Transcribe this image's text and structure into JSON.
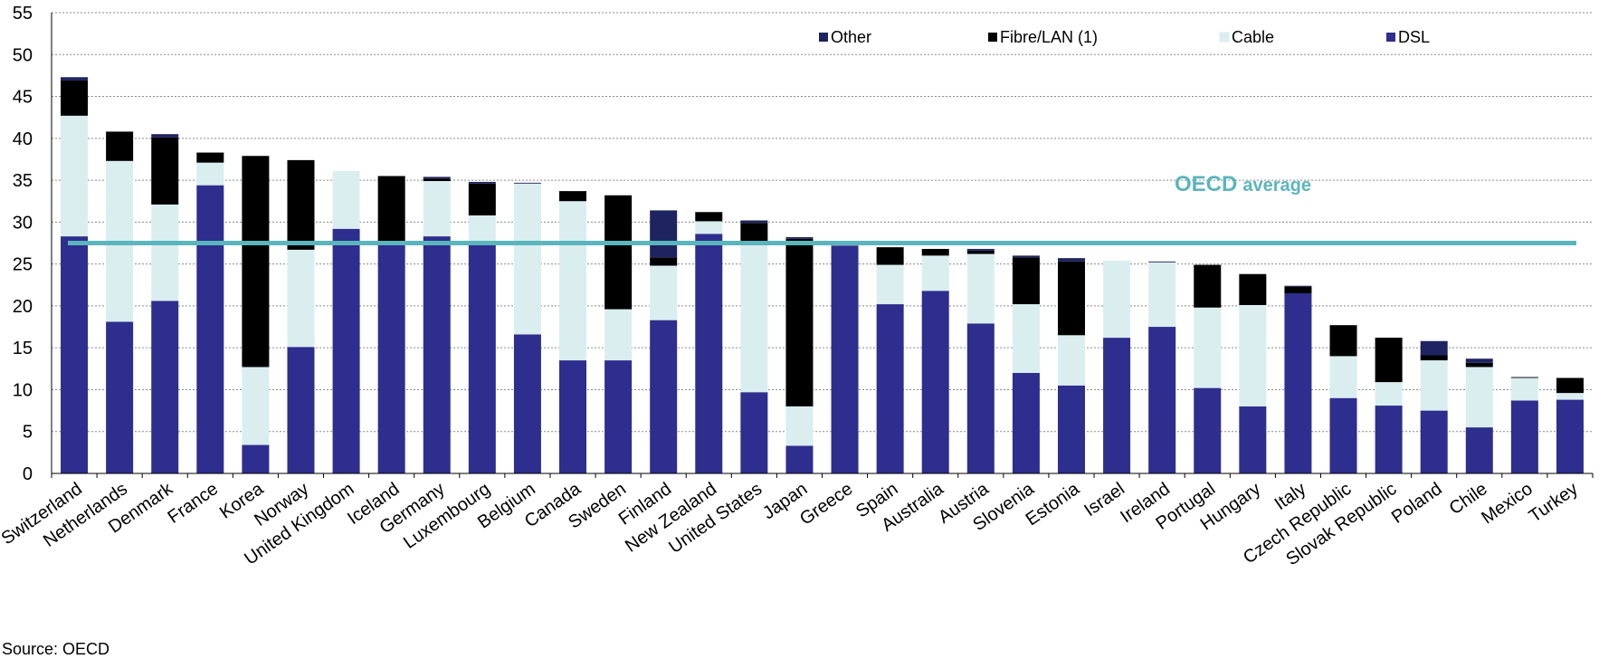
{
  "chart_data": {
    "type": "bar",
    "stacked": true,
    "categories": [
      "Switzerland",
      "Netherlands",
      "Denmark",
      "France",
      "Korea",
      "Norway",
      "United Kingdom",
      "Iceland",
      "Germany",
      "Luxembourg",
      "Belgium",
      "Canada",
      "Sweden",
      "Finland",
      "New Zealand",
      "United States",
      "Japan",
      "Greece",
      "Spain",
      "Australia",
      "Austria",
      "Slovenia",
      "Estonia",
      "Israel",
      "Ireland",
      "Portugal",
      "Hungary",
      "Italy",
      "Czech Republic",
      "Slovak Republic",
      "Poland",
      "Chile",
      "Mexico",
      "Turkey"
    ],
    "series": [
      {
        "name": "DSL",
        "color": "#2e2e8e",
        "values": [
          28.3,
          18.1,
          20.6,
          34.4,
          3.4,
          15.1,
          29.2,
          27.7,
          28.3,
          27.3,
          16.6,
          13.5,
          13.5,
          18.3,
          28.6,
          9.7,
          3.3,
          27.2,
          20.2,
          21.8,
          17.9,
          12.0,
          10.5,
          16.2,
          17.5,
          10.2,
          8.0,
          21.5,
          9.0,
          8.1,
          7.5,
          5.5,
          8.7,
          8.8
        ]
      },
      {
        "name": "Cable",
        "color": "#daeef0",
        "values": [
          14.4,
          19.2,
          11.5,
          2.7,
          9.3,
          11.6,
          6.9,
          0.0,
          6.6,
          3.5,
          18.0,
          19.0,
          6.1,
          6.5,
          1.5,
          17.7,
          4.7,
          0.0,
          4.7,
          4.2,
          8.3,
          8.2,
          6.0,
          9.2,
          7.7,
          9.6,
          12.1,
          0.0,
          5.0,
          2.8,
          6.0,
          7.2,
          2.7,
          0.8
        ]
      },
      {
        "name": "Fibre/LAN (1)",
        "color": "#000000",
        "values": [
          4.2,
          3.5,
          8.0,
          1.2,
          25.2,
          10.7,
          0.0,
          7.8,
          0.3,
          3.8,
          0.0,
          1.2,
          13.6,
          1.0,
          1.1,
          2.5,
          20.0,
          0.0,
          2.1,
          0.8,
          0.4,
          5.6,
          8.8,
          0.0,
          0.0,
          5.1,
          3.7,
          0.8,
          3.7,
          5.3,
          0.6,
          0.5,
          0.1,
          1.8
        ]
      },
      {
        "name": "Other",
        "color": "#1e2460",
        "values": [
          0.4,
          0.0,
          0.4,
          0.0,
          0.0,
          0.0,
          0.0,
          0.0,
          0.2,
          0.2,
          0.1,
          0.0,
          0.0,
          5.6,
          0.0,
          0.3,
          0.2,
          0.0,
          0.0,
          0.0,
          0.2,
          0.2,
          0.4,
          0.0,
          0.1,
          0.0,
          0.0,
          0.1,
          0.0,
          0.0,
          1.7,
          0.5,
          0.0,
          0.0
        ]
      }
    ],
    "ylim": [
      0,
      55
    ],
    "yticks": [
      0,
      5,
      10,
      15,
      20,
      25,
      30,
      35,
      40,
      45,
      50,
      55
    ],
    "legend_order": [
      "Other",
      "Fibre/LAN (1)",
      "Cable",
      "DSL"
    ],
    "legend_placement": "top-right",
    "grid": true,
    "average_line": {
      "value": 27.5,
      "label_main": "OECD",
      "label_sub": "average",
      "color": "#5bb5bd"
    }
  },
  "source_text": "Source: OECD"
}
